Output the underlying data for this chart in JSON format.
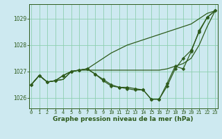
{
  "title": "Graphe pression niveau de la mer (hPa)",
  "bg_color": "#cde9f0",
  "grid_color": "#8ecfb0",
  "line_color": "#2d5a1b",
  "x_min": 0,
  "x_max": 23,
  "y_min": 1025.6,
  "y_max": 1029.55,
  "y_ticks": [
    1026,
    1027,
    1028,
    1029
  ],
  "x_ticks": [
    0,
    1,
    2,
    3,
    4,
    5,
    6,
    7,
    8,
    9,
    10,
    11,
    12,
    13,
    14,
    15,
    16,
    17,
    18,
    19,
    20,
    21,
    22,
    23
  ],
  "series": [
    {
      "x": [
        0,
        1,
        2,
        3,
        4,
        5,
        6,
        7,
        8,
        9,
        10,
        11,
        12,
        13,
        14,
        15,
        16,
        17,
        18,
        19,
        20,
        21,
        22,
        23
      ],
      "y": [
        1026.5,
        1026.85,
        1026.6,
        1026.65,
        1026.7,
        1027.0,
        1027.05,
        1027.05,
        1027.05,
        1027.05,
        1027.05,
        1027.05,
        1027.05,
        1027.05,
        1027.05,
        1027.05,
        1027.05,
        1027.1,
        1027.2,
        1027.3,
        1027.5,
        1028.0,
        1028.7,
        1029.3
      ],
      "marker": false
    },
    {
      "x": [
        0,
        1,
        2,
        3,
        4,
        5,
        6,
        7,
        8,
        9,
        10,
        11,
        12,
        13,
        14,
        15,
        16,
        17,
        18,
        19,
        20,
        21,
        22,
        23
      ],
      "y": [
        1026.5,
        1026.85,
        1026.6,
        1026.65,
        1026.7,
        1027.0,
        1027.05,
        1027.1,
        1027.3,
        1027.5,
        1027.7,
        1027.85,
        1028.0,
        1028.1,
        1028.2,
        1028.3,
        1028.4,
        1028.5,
        1028.6,
        1028.7,
        1028.8,
        1029.0,
        1029.2,
        1029.3
      ],
      "marker": false
    },
    {
      "x": [
        0,
        1,
        2,
        3,
        4,
        5,
        6,
        7,
        8,
        9,
        10,
        11,
        12,
        13,
        14,
        15,
        16,
        17,
        18,
        19,
        20,
        21,
        22,
        23
      ],
      "y": [
        1026.5,
        1026.85,
        1026.6,
        1026.65,
        1026.85,
        1027.0,
        1027.05,
        1027.1,
        1026.9,
        1026.7,
        1026.5,
        1026.4,
        1026.4,
        1026.35,
        1026.3,
        1025.95,
        1025.95,
        1026.45,
        1027.1,
        1027.5,
        1027.8,
        1028.5,
        1029.05,
        1029.3
      ],
      "marker": true
    },
    {
      "x": [
        0,
        1,
        2,
        3,
        4,
        5,
        6,
        7,
        8,
        9,
        10,
        11,
        12,
        13,
        14,
        15,
        16,
        17,
        18,
        19,
        20,
        21,
        22,
        23
      ],
      "y": [
        1026.5,
        1026.85,
        1026.6,
        1026.65,
        1026.85,
        1027.0,
        1027.05,
        1027.1,
        1026.9,
        1026.65,
        1026.45,
        1026.4,
        1026.35,
        1026.3,
        1026.3,
        1025.95,
        1025.95,
        1026.55,
        1027.2,
        1027.1,
        1027.75,
        1028.55,
        1029.05,
        1029.3
      ],
      "marker": true
    }
  ],
  "title_fontsize": 6.5,
  "tick_fontsize": 5.0,
  "linewidth": 0.9,
  "markersize": 2.5
}
